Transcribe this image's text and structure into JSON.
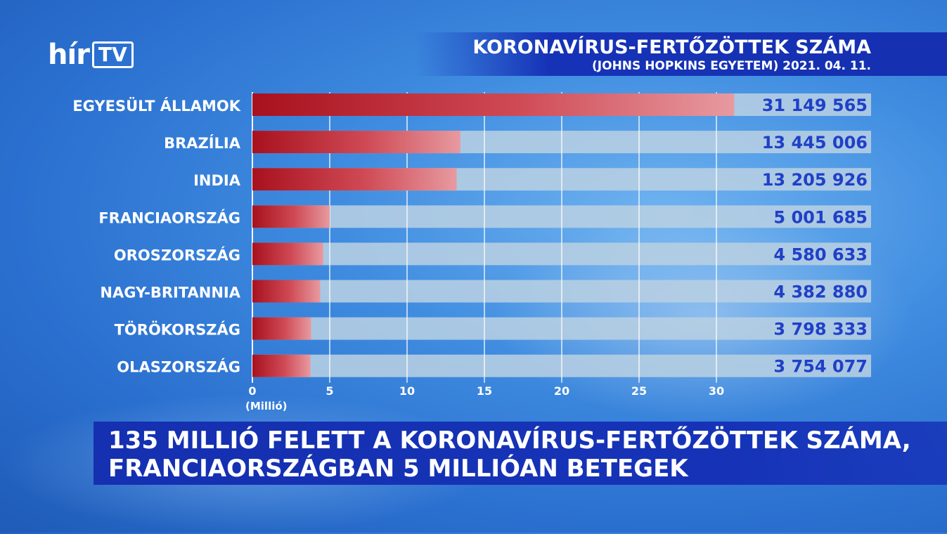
{
  "logo": {
    "brand": "hír",
    "channel": "TV"
  },
  "chart_data": {
    "type": "bar",
    "orientation": "horizontal",
    "title": "KORONAVÍRUS-FERTŐZÖTTEK SZÁMA",
    "subtitle": "(JOHNS HOPKINS EGYETEM) 2021. 04. 11.",
    "categories": [
      "EGYESÜLT ÁLLAMOK",
      "BRAZÍLIA",
      "INDIA",
      "FRANCIAORSZÁG",
      "OROSZORSZÁG",
      "NAGY-BRITANNIA",
      "TÖRÖKORSZÁG",
      "OLASZORSZÁG"
    ],
    "values": [
      31149565,
      13445006,
      13205926,
      5001685,
      4580633,
      4382880,
      3798333,
      3754077
    ],
    "value_labels": [
      "31 149 565",
      "13 445 006",
      "13 205 926",
      "5 001 685",
      "4 580 633",
      "4 382 880",
      "3 798 333",
      "3 754 077"
    ],
    "x_ticks": [
      0,
      5,
      10,
      15,
      20,
      25,
      30
    ],
    "xlabel": "(Millió)",
    "xlim": [
      0,
      40
    ],
    "unit_divisor": 1000000,
    "grid": true,
    "colors": {
      "bar": "#b81c28",
      "track": "#b7cfe3",
      "value_text": "#2040c8"
    }
  },
  "headline": {
    "line1": "135 MILLIÓ FELETT A KORONAVÍRUS-FERTŐZÖTTEK SZÁMA,",
    "line2": "FRANCIAORSZÁGBAN 5 MILLIÓAN BETEGEK"
  }
}
